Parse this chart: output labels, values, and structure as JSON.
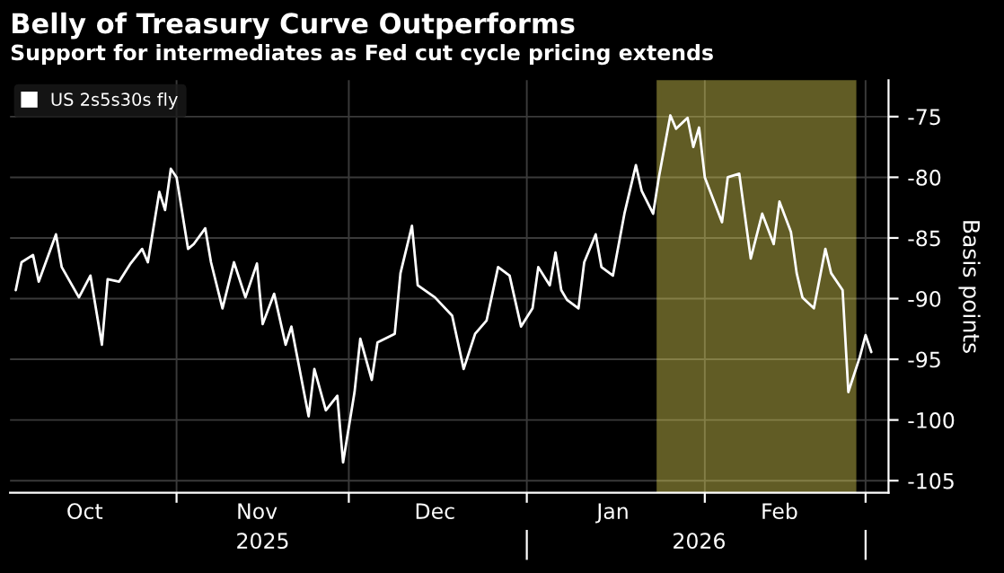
{
  "chart_data": {
    "type": "line",
    "title": "Belly of Treasury Curve Outperforms",
    "subtitle": "Support for intermediates as Fed cut cycle pricing extends",
    "ylabel": "Basis points",
    "series": [
      {
        "name": "US 2s5s30s fly",
        "color": "#ffffff",
        "x": [
          "2025-10-04",
          "2025-10-05",
          "2025-10-07",
          "2025-10-08",
          "2025-10-11",
          "2025-10-12",
          "2025-10-15",
          "2025-10-17",
          "2025-10-19",
          "2025-10-20",
          "2025-10-22",
          "2025-10-24",
          "2025-10-26",
          "2025-10-27",
          "2025-10-29",
          "2025-10-30",
          "2025-10-31",
          "2025-11-01",
          "2025-11-03",
          "2025-11-04",
          "2025-11-06",
          "2025-11-07",
          "2025-11-09",
          "2025-11-11",
          "2025-11-13",
          "2025-11-15",
          "2025-11-16",
          "2025-11-18",
          "2025-11-20",
          "2025-11-21",
          "2025-11-24",
          "2025-11-25",
          "2025-11-27",
          "2025-11-29",
          "2025-11-30",
          "2025-12-02",
          "2025-12-03",
          "2025-12-05",
          "2025-12-06",
          "2025-12-09",
          "2025-12-10",
          "2025-12-12",
          "2025-12-13",
          "2025-12-16",
          "2025-12-19",
          "2025-12-21",
          "2025-12-23",
          "2025-12-25",
          "2025-12-27",
          "2025-12-29",
          "2025-12-31",
          "2026-01-02",
          "2026-01-03",
          "2026-01-05",
          "2026-01-06",
          "2026-01-07",
          "2026-01-08",
          "2026-01-10",
          "2026-01-11",
          "2026-01-13",
          "2026-01-14",
          "2026-01-16",
          "2026-01-18",
          "2026-01-20",
          "2026-01-21",
          "2026-01-23",
          "2026-01-24",
          "2026-01-26",
          "2026-01-27",
          "2026-01-29",
          "2026-01-30",
          "2026-01-31",
          "2026-02-01",
          "2026-02-04",
          "2026-02-05",
          "2026-02-07",
          "2026-02-09",
          "2026-02-11",
          "2026-02-13",
          "2026-02-14",
          "2026-02-16",
          "2026-02-17",
          "2026-02-18",
          "2026-02-20",
          "2026-02-22",
          "2026-02-23",
          "2026-02-25",
          "2026-02-26",
          "2026-02-28",
          "2026-03-01",
          "2026-03-02"
        ],
        "values": [
          -89.3,
          -87.0,
          -86.4,
          -88.6,
          -84.7,
          -87.4,
          -89.9,
          -88.1,
          -93.8,
          -88.4,
          -88.6,
          -87.1,
          -85.9,
          -87.0,
          -81.2,
          -82.7,
          -79.3,
          -80.0,
          -85.9,
          -85.5,
          -84.2,
          -87.0,
          -90.8,
          -87.0,
          -89.9,
          -87.1,
          -92.1,
          -89.6,
          -93.8,
          -92.3,
          -99.7,
          -95.8,
          -99.2,
          -98.0,
          -103.5,
          -97.7,
          -93.3,
          -96.7,
          -93.6,
          -92.9,
          -87.9,
          -84.0,
          -88.9,
          -89.9,
          -91.4,
          -95.8,
          -92.9,
          -91.8,
          -87.4,
          -88.1,
          -92.3,
          -90.8,
          -87.4,
          -88.9,
          -86.2,
          -89.3,
          -90.1,
          -90.8,
          -87.0,
          -84.7,
          -87.4,
          -88.1,
          -83.0,
          -79.0,
          -81.1,
          -83.0,
          -80.0,
          -74.9,
          -76.0,
          -75.1,
          -77.5,
          -75.9,
          -80.0,
          -83.7,
          -80.0,
          -79.7,
          -86.7,
          -83.0,
          -85.5,
          -82.0,
          -84.5,
          -87.9,
          -89.9,
          -90.8,
          -85.9,
          -87.9,
          -89.3,
          -97.7,
          -94.8,
          -93.0,
          -94.4
        ]
      }
    ],
    "xlim": [
      "2025-10-03",
      "2026-03-05"
    ],
    "xticks": [
      {
        "value": "2025-10-16",
        "label": "Oct"
      },
      {
        "value": "2025-11-01",
        "label": null
      },
      {
        "value": "2025-11-15",
        "label": "Nov"
      },
      {
        "value": "2025-12-01",
        "label": null
      },
      {
        "value": "2025-12-16",
        "label": "Dec"
      },
      {
        "value": "2026-01-01",
        "label": null
      },
      {
        "value": "2026-01-16",
        "label": "Jan"
      },
      {
        "value": "2026-02-01",
        "label": null
      },
      {
        "value": "2026-02-14",
        "label": "Feb"
      },
      {
        "value": "2026-03-01",
        "label": null
      }
    ],
    "x2lim": [
      "2025-10-03",
      "2026-03-05"
    ],
    "x2ticks": [
      {
        "value": "2025-11-16",
        "label": "2025"
      },
      {
        "value": "2026-01-01",
        "label": null
      },
      {
        "value": "2026-01-31",
        "label": "2026"
      },
      {
        "value": "2026-03-01",
        "label": null
      }
    ],
    "ylim": [
      -106,
      -72
    ],
    "yticks": [
      -75,
      -80,
      -85,
      -90,
      -95,
      -100,
      -105
    ],
    "bands": [
      {
        "axis": "x",
        "from": "2026-01-24",
        "to": "2026-02-27",
        "color": "#f2e55c"
      }
    ],
    "grid": true,
    "legend": "top left",
    "line_style": "solid",
    "marker": "none"
  }
}
